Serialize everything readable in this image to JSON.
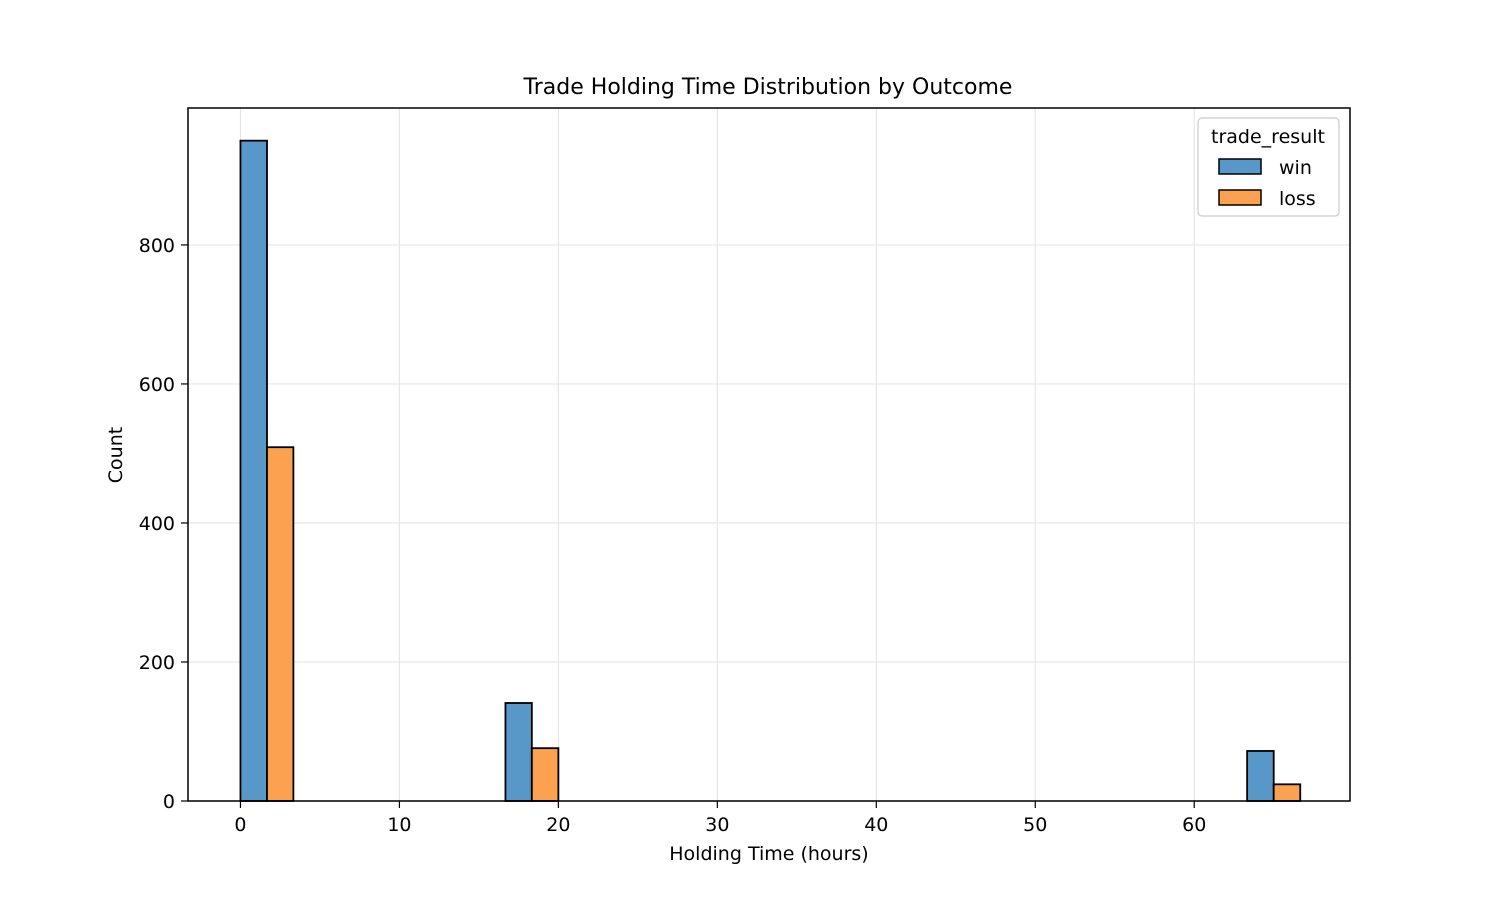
{
  "chart_data": {
    "type": "bar",
    "title": "Trade Holding Time Distribution by Outcome",
    "xlabel": "Holding Time (hours)",
    "ylabel": "Count",
    "xlim": [
      -3.3,
      69.8
    ],
    "ylim": [
      0,
      997
    ],
    "xticks": [
      0,
      10,
      20,
      30,
      40,
      50,
      60
    ],
    "yticks": [
      0,
      200,
      400,
      600,
      800
    ],
    "grid": true,
    "legend": {
      "title": "trade_result",
      "placement": "top-right"
    },
    "bin_edges": [
      [
        0.0,
        1.67,
        3.33
      ],
      [
        16.67,
        18.33,
        20.0
      ],
      [
        63.33,
        65.0,
        66.67
      ]
    ],
    "series": [
      {
        "name": "win",
        "color": "#5798c9",
        "edge_color": "#000000",
        "bars": [
          {
            "x0": 0.0,
            "x1": 1.67,
            "value": 950
          },
          {
            "x0": 16.67,
            "x1": 18.33,
            "value": 141
          },
          {
            "x0": 63.33,
            "x1": 65.0,
            "value": 72
          }
        ]
      },
      {
        "name": "loss",
        "color": "#fba14f",
        "edge_color": "#000000",
        "bars": [
          {
            "x0": 1.67,
            "x1": 3.33,
            "value": 509
          },
          {
            "x0": 18.33,
            "x1": 20.0,
            "value": 76
          },
          {
            "x0": 65.0,
            "x1": 66.67,
            "value": 24
          }
        ]
      }
    ]
  }
}
